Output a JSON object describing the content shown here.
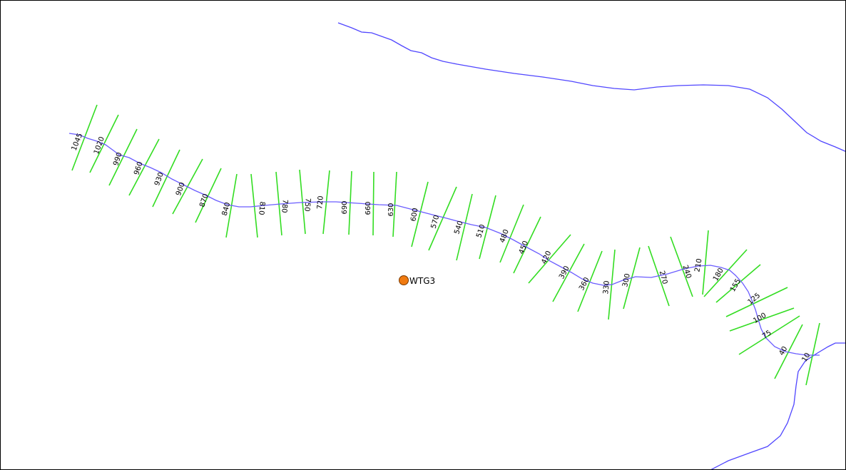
{
  "map": {
    "colors": {
      "river": "#5046ff",
      "centerline": "#6a5cff",
      "cross_section": "#33dd22",
      "turbine_fill": "#f07a10",
      "turbine_stroke": "#7a3a00",
      "frame": "#000000"
    },
    "site": {
      "label": "WTG3"
    },
    "chainages": [
      "1045",
      "1020",
      "990",
      "960",
      "930",
      "900",
      "870",
      "840",
      "810",
      "780",
      "750",
      "720",
      "690",
      "660",
      "630",
      "600",
      "570",
      "540",
      "510",
      "480",
      "450",
      "420",
      "390",
      "360",
      "330",
      "300",
      "270",
      "240",
      "210",
      "180",
      "155",
      "125",
      "100",
      "75",
      "40",
      "10"
    ]
  }
}
